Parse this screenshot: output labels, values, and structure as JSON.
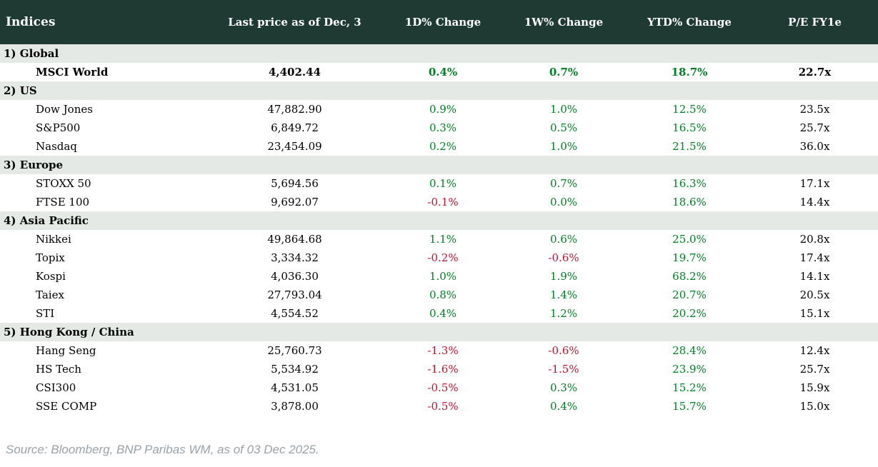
{
  "table": {
    "columns": [
      {
        "label": "Indices"
      },
      {
        "label": "Last price as of Dec, 3"
      },
      {
        "label": "1D% Change"
      },
      {
        "label": "1W% Change"
      },
      {
        "label": "YTD% Change"
      },
      {
        "label": "P/E FY1e"
      }
    ],
    "sections": [
      {
        "label": "1) Global",
        "rows": [
          {
            "name": "MSCI World",
            "price": "4,402.44",
            "d1": "0.4%",
            "w1": "0.7%",
            "ytd": "18.7%",
            "pe": "22.7x",
            "bold": true
          }
        ]
      },
      {
        "label": "2) US",
        "rows": [
          {
            "name": "Dow Jones",
            "price": "47,882.90",
            "d1": "0.9%",
            "w1": "1.0%",
            "ytd": "12.5%",
            "pe": "23.5x",
            "bold": false
          },
          {
            "name": "S&P500",
            "price": "6,849.72",
            "d1": "0.3%",
            "w1": "0.5%",
            "ytd": "16.5%",
            "pe": "25.7x",
            "bold": false
          },
          {
            "name": "Nasdaq",
            "price": "23,454.09",
            "d1": "0.2%",
            "w1": "1.0%",
            "ytd": "21.5%",
            "pe": "36.0x",
            "bold": false
          }
        ]
      },
      {
        "label": "3) Europe",
        "rows": [
          {
            "name": "STOXX 50",
            "price": "5,694.56",
            "d1": "0.1%",
            "w1": "0.7%",
            "ytd": "16.3%",
            "pe": "17.1x",
            "bold": false
          },
          {
            "name": "FTSE 100",
            "price": "9,692.07",
            "d1": "-0.1%",
            "w1": "0.0%",
            "ytd": "18.6%",
            "pe": "14.4x",
            "bold": false
          }
        ]
      },
      {
        "label": "4) Asia Pacific",
        "rows": [
          {
            "name": "Nikkei",
            "price": "49,864.68",
            "d1": "1.1%",
            "w1": "0.6%",
            "ytd": "25.0%",
            "pe": "20.8x",
            "bold": false
          },
          {
            "name": "Topix",
            "price": "3,334.32",
            "d1": "-0.2%",
            "w1": "-0.6%",
            "ytd": "19.7%",
            "pe": "17.4x",
            "bold": false
          },
          {
            "name": "Kospi",
            "price": "4,036.30",
            "d1": "1.0%",
            "w1": "1.9%",
            "ytd": "68.2%",
            "pe": "14.1x",
            "bold": false
          },
          {
            "name": "Taiex",
            "price": "27,793.04",
            "d1": "0.8%",
            "w1": "1.4%",
            "ytd": "20.7%",
            "pe": "20.5x",
            "bold": false
          },
          {
            "name": "STI",
            "price": "4,554.52",
            "d1": "0.4%",
            "w1": "1.2%",
            "ytd": "20.2%",
            "pe": "15.1x",
            "bold": false
          }
        ]
      },
      {
        "label": "5) Hong Kong / China",
        "rows": [
          {
            "name": "Hang Seng",
            "price": "25,760.73",
            "d1": "-1.3%",
            "w1": "-0.6%",
            "ytd": "28.4%",
            "pe": "12.4x",
            "bold": false
          },
          {
            "name": "HS Tech",
            "price": "5,534.92",
            "d1": "-1.6%",
            "w1": "-1.5%",
            "ytd": "23.9%",
            "pe": "25.7x",
            "bold": false
          },
          {
            "name": "CSI300",
            "price": "4,531.05",
            "d1": "-0.5%",
            "w1": "0.3%",
            "ytd": "15.2%",
            "pe": "15.9x",
            "bold": false
          },
          {
            "name": "SSE COMP",
            "price": "3,878.00",
            "d1": "-0.5%",
            "w1": "0.4%",
            "ytd": "15.7%",
            "pe": "15.0x",
            "bold": false
          }
        ]
      }
    ]
  },
  "footer": {
    "source": "Source: Bloomberg, BNP Paribas WM, as of 03 Dec 2025."
  },
  "colors": {
    "header_bg": "#1e3a33",
    "section_bg": "#e4e9e5",
    "positive": "#008023",
    "negative": "#c0152f",
    "muted": "#9aa2a9"
  }
}
